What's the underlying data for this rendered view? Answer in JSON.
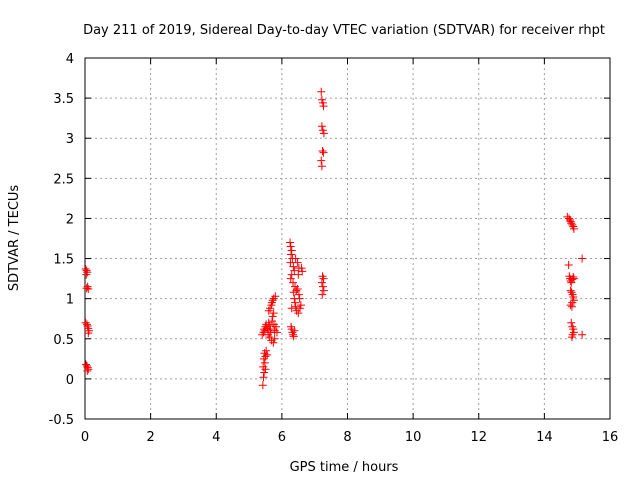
{
  "chart_data": {
    "type": "scatter",
    "title": "Day 211 of 2019, Sidereal Day-to-day VTEC variation (SDTVAR) for receiver rhpt",
    "xlabel": "GPS time / hours",
    "ylabel": "SDTVAR / TECUs",
    "xlim": [
      0,
      16
    ],
    "ylim": [
      -0.5,
      4
    ],
    "xticks": [
      0,
      2,
      4,
      6,
      8,
      10,
      12,
      14,
      16
    ],
    "xtick_labels": [
      "0",
      "2",
      "4",
      "6",
      "8",
      "10",
      "12",
      "14",
      "16"
    ],
    "yticks": [
      -0.5,
      0,
      0.5,
      1,
      1.5,
      2,
      2.5,
      3,
      3.5,
      4
    ],
    "ytick_labels": [
      "-0.5",
      "0",
      "0.5",
      "1",
      "1.5",
      "2",
      "2.5",
      "3",
      "3.5",
      "4"
    ],
    "grid": true,
    "marker": "+",
    "color": "#ff0000",
    "series": [
      {
        "name": "SDTVAR",
        "points": [
          [
            0.02,
            1.37
          ],
          [
            0.05,
            1.35
          ],
          [
            0.07,
            1.33
          ],
          [
            0.04,
            1.3
          ],
          [
            0.08,
            1.15
          ],
          [
            0.05,
            1.13
          ],
          [
            0.1,
            1.12
          ],
          [
            0.02,
            0.7
          ],
          [
            0.06,
            0.68
          ],
          [
            0.08,
            0.66
          ],
          [
            0.1,
            0.63
          ],
          [
            0.12,
            0.6
          ],
          [
            0.1,
            0.57
          ],
          [
            0.03,
            0.18
          ],
          [
            0.06,
            0.16
          ],
          [
            0.08,
            0.14
          ],
          [
            0.1,
            0.12
          ],
          [
            0.07,
            0.1
          ],
          [
            5.42,
            -0.08
          ],
          [
            5.44,
            0.02
          ],
          [
            5.46,
            0.08
          ],
          [
            5.43,
            0.15
          ],
          [
            5.48,
            0.2
          ],
          [
            5.45,
            0.25
          ],
          [
            5.5,
            0.28
          ],
          [
            5.47,
            0.32
          ],
          [
            5.52,
            0.35
          ],
          [
            5.55,
            0.3
          ],
          [
            5.5,
            0.12
          ],
          [
            5.4,
            0.55
          ],
          [
            5.44,
            0.58
          ],
          [
            5.46,
            0.62
          ],
          [
            5.48,
            0.6
          ],
          [
            5.5,
            0.65
          ],
          [
            5.52,
            0.68
          ],
          [
            5.55,
            0.63
          ],
          [
            5.58,
            0.6
          ],
          [
            5.6,
            0.7
          ],
          [
            5.62,
            0.66
          ],
          [
            5.65,
            0.62
          ],
          [
            5.58,
            0.55
          ],
          [
            5.62,
            0.52
          ],
          [
            5.68,
            0.48
          ],
          [
            5.66,
            0.58
          ],
          [
            5.7,
            0.72
          ],
          [
            5.72,
            0.78
          ],
          [
            5.75,
            0.82
          ],
          [
            5.6,
            0.85
          ],
          [
            5.64,
            0.88
          ],
          [
            5.68,
            0.92
          ],
          [
            5.7,
            0.95
          ],
          [
            5.72,
            0.98
          ],
          [
            5.75,
            1.0
          ],
          [
            5.8,
            1.03
          ],
          [
            5.78,
            0.6
          ],
          [
            5.78,
            0.5
          ],
          [
            5.74,
            0.45
          ],
          [
            5.76,
            0.68
          ],
          [
            5.82,
            0.65
          ],
          [
            5.85,
            0.58
          ],
          [
            6.25,
            1.7
          ],
          [
            6.27,
            1.65
          ],
          [
            6.3,
            1.6
          ],
          [
            6.28,
            1.55
          ],
          [
            6.32,
            1.5
          ],
          [
            6.26,
            1.45
          ],
          [
            6.35,
            1.4
          ],
          [
            6.38,
            1.35
          ],
          [
            6.3,
            1.3
          ],
          [
            6.27,
            1.25
          ],
          [
            6.34,
            1.2
          ],
          [
            6.4,
            1.15
          ],
          [
            6.44,
            1.1
          ],
          [
            6.48,
            1.12
          ],
          [
            6.5,
            1.3
          ],
          [
            6.52,
            1.38
          ],
          [
            6.48,
            1.45
          ],
          [
            6.42,
            1.5
          ],
          [
            6.36,
            1.08
          ],
          [
            6.38,
            1.0
          ],
          [
            6.4,
            0.95
          ],
          [
            6.42,
            0.9
          ],
          [
            6.3,
            0.88
          ],
          [
            6.45,
            0.85
          ],
          [
            6.5,
            0.82
          ],
          [
            6.55,
            0.88
          ],
          [
            6.58,
            0.92
          ],
          [
            6.54,
            1.0
          ],
          [
            6.52,
            1.05
          ],
          [
            6.6,
            1.38
          ],
          [
            6.62,
            1.34
          ],
          [
            6.28,
            0.65
          ],
          [
            6.3,
            0.62
          ],
          [
            6.32,
            0.58
          ],
          [
            6.34,
            0.55
          ],
          [
            6.36,
            0.53
          ],
          [
            6.38,
            0.6
          ],
          [
            7.2,
            3.58
          ],
          [
            7.22,
            3.48
          ],
          [
            7.25,
            3.44
          ],
          [
            7.27,
            3.4
          ],
          [
            7.22,
            3.15
          ],
          [
            7.25,
            3.1
          ],
          [
            7.28,
            3.06
          ],
          [
            7.24,
            2.84
          ],
          [
            7.27,
            2.82
          ],
          [
            7.2,
            2.72
          ],
          [
            7.22,
            2.65
          ],
          [
            7.24,
            1.28
          ],
          [
            7.27,
            1.25
          ],
          [
            7.22,
            1.2
          ],
          [
            7.25,
            1.15
          ],
          [
            7.28,
            1.1
          ],
          [
            7.23,
            1.05
          ],
          [
            14.7,
            2.02
          ],
          [
            14.75,
            2.0
          ],
          [
            14.78,
            1.98
          ],
          [
            14.8,
            1.96
          ],
          [
            14.82,
            1.94
          ],
          [
            14.85,
            1.92
          ],
          [
            14.88,
            1.9
          ],
          [
            14.9,
            1.87
          ],
          [
            14.74,
            1.42
          ],
          [
            14.76,
            1.28
          ],
          [
            14.78,
            1.25
          ],
          [
            14.8,
            1.22
          ],
          [
            14.82,
            1.2
          ],
          [
            14.85,
            1.24
          ],
          [
            14.88,
            1.27
          ],
          [
            14.9,
            1.25
          ],
          [
            14.8,
            1.1
          ],
          [
            14.83,
            1.08
          ],
          [
            14.86,
            1.05
          ],
          [
            14.88,
            1.02
          ],
          [
            14.9,
            0.98
          ],
          [
            14.85,
            0.95
          ],
          [
            14.8,
            0.92
          ],
          [
            14.84,
            0.9
          ],
          [
            14.82,
            0.7
          ],
          [
            14.85,
            0.65
          ],
          [
            14.88,
            0.62
          ],
          [
            14.9,
            0.58
          ],
          [
            14.86,
            0.55
          ],
          [
            14.84,
            0.52
          ],
          [
            15.15,
            1.5
          ],
          [
            15.15,
            0.55
          ]
        ]
      }
    ]
  }
}
